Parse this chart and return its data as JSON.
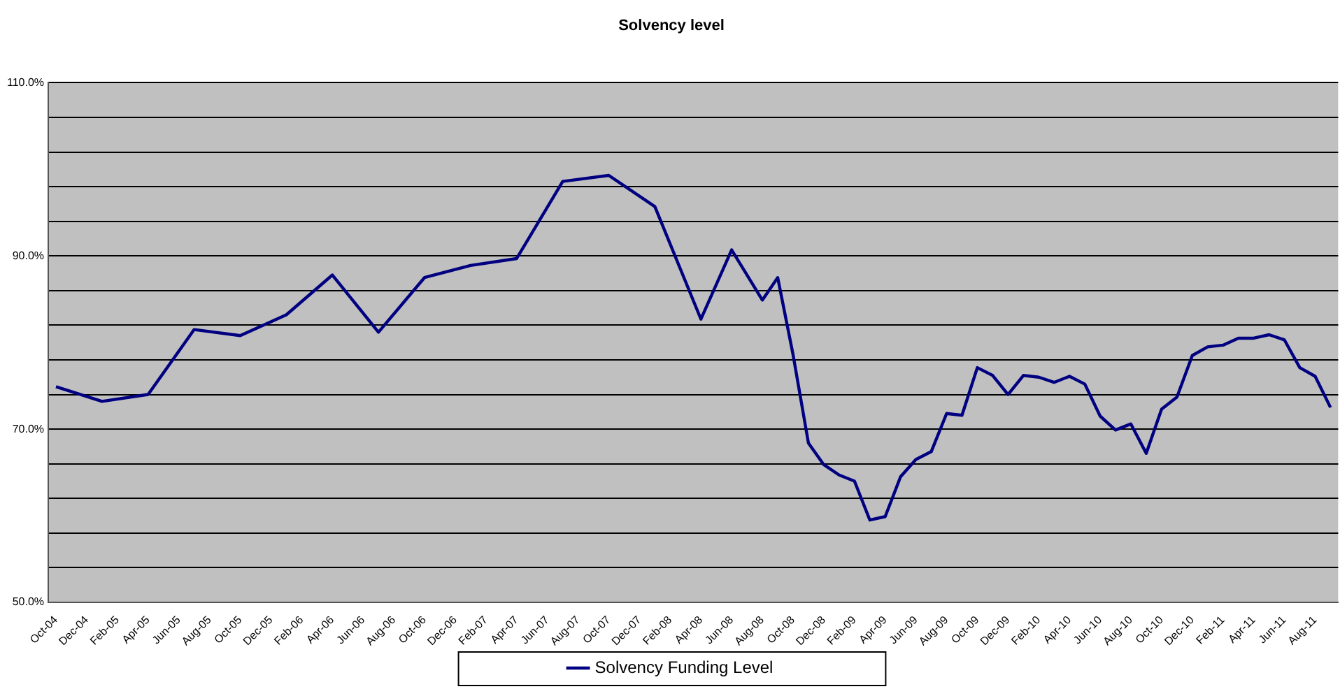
{
  "chart_data": {
    "type": "line",
    "title": "Solvency level",
    "categories": [
      "Oct-04",
      null,
      "Dec-04",
      null,
      "Feb-05",
      null,
      "Apr-05",
      null,
      "Jun-05",
      null,
      "Aug-05",
      null,
      "Oct-05",
      null,
      "Dec-05",
      null,
      "Feb-06",
      null,
      "Apr-06",
      null,
      "Jun-06",
      null,
      "Aug-06",
      null,
      "Oct-06",
      null,
      "Dec-06",
      null,
      "Feb-07",
      null,
      "Apr-07",
      null,
      "Jun-07",
      null,
      "Aug-07",
      null,
      "Oct-07",
      null,
      "Dec-07",
      null,
      "Feb-08",
      null,
      "Apr-08",
      null,
      "Jun-08",
      null,
      "Aug-08",
      null,
      "Oct-08",
      null,
      "Dec-08",
      null,
      "Feb-09",
      null,
      "Apr-09",
      null,
      "Jun-09",
      null,
      "Aug-09",
      null,
      "Oct-09",
      null,
      "Dec-09",
      null,
      "Feb-10",
      null,
      "Apr-10",
      null,
      "Jun-10",
      null,
      "Aug-10",
      null,
      "Oct-10",
      null,
      "Dec-10",
      null,
      "Feb-11",
      null,
      "Apr-11",
      null,
      "Jun-11",
      null,
      "Aug-11",
      null
    ],
    "series": [
      {
        "name": "Solvency Funding Level",
        "color": "#000080",
        "values": [
          74.9,
          null,
          null,
          73.2,
          null,
          null,
          74.0,
          null,
          null,
          81.5,
          null,
          null,
          80.8,
          null,
          null,
          83.2,
          null,
          null,
          87.8,
          null,
          null,
          81.2,
          null,
          null,
          87.5,
          null,
          null,
          88.9,
          null,
          null,
          89.7,
          null,
          null,
          98.6,
          null,
          null,
          99.3,
          null,
          null,
          95.7,
          null,
          null,
          82.7,
          null,
          90.7,
          null,
          84.9,
          87.5,
          78.6,
          68.4,
          65.9,
          64.7,
          64.0,
          59.5,
          59.9,
          64.5,
          66.5,
          67.4,
          71.8,
          71.6,
          77.1,
          76.2,
          74.0,
          76.2,
          76.0,
          75.4,
          76.1,
          75.2,
          71.5,
          69.9,
          70.6,
          67.2,
          72.3,
          73.7,
          78.5,
          79.5,
          79.7,
          80.5,
          80.5,
          80.9,
          80.3,
          77.1,
          76.1,
          72.5
        ]
      }
    ],
    "ylim": [
      50,
      110
    ],
    "yticks": [
      {
        "value": 50,
        "label": "50.0%"
      },
      {
        "value": 54,
        "label": null
      },
      {
        "value": 58,
        "label": null
      },
      {
        "value": 62,
        "label": null
      },
      {
        "value": 66,
        "label": null
      },
      {
        "value": 70,
        "label": "70.0%"
      },
      {
        "value": 74,
        "label": null
      },
      {
        "value": 78,
        "label": null
      },
      {
        "value": 82,
        "label": null
      },
      {
        "value": 86,
        "label": null
      },
      {
        "value": 90,
        "label": "90.0%"
      },
      {
        "value": 94,
        "label": null
      },
      {
        "value": 98,
        "label": null
      },
      {
        "value": 102,
        "label": null
      },
      {
        "value": 106,
        "label": null
      },
      {
        "value": 110,
        "label": "110.0%"
      }
    ],
    "grid": "y",
    "legend": "bottom",
    "marker": "none",
    "line_style": "solid"
  }
}
